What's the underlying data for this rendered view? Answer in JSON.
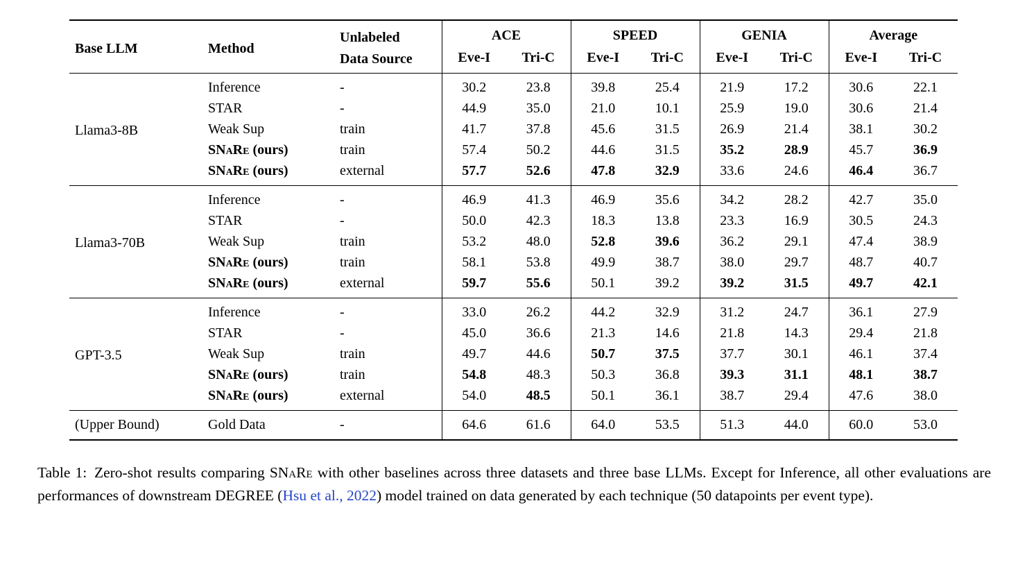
{
  "colors": {
    "text": "#000000",
    "citation_link": "#2646C8"
  },
  "table": {
    "columns": {
      "base_llm": "Base LLM",
      "method": "Method",
      "source_line1": "Unlabeled",
      "source_line2": "Data Source",
      "metric_groups": [
        {
          "label": "ACE",
          "metrics": [
            "Eve-I",
            "Tri-C"
          ]
        },
        {
          "label": "SPEED",
          "metrics": [
            "Eve-I",
            "Tri-C"
          ]
        },
        {
          "label": "GENIA",
          "metrics": [
            "Eve-I",
            "Tri-C"
          ]
        },
        {
          "label": "Average",
          "metrics": [
            "Eve-I",
            "Tri-C"
          ]
        }
      ]
    },
    "groups": [
      {
        "llm": "Llama3-8B",
        "rows": [
          {
            "method": [
              {
                "t": "Inference"
              }
            ],
            "source": "-",
            "values": [
              "30.2",
              "23.8",
              "39.8",
              "25.4",
              "21.9",
              "17.2",
              "30.6",
              "22.1"
            ],
            "bold": [
              0,
              0,
              0,
              0,
              0,
              0,
              0,
              0
            ]
          },
          {
            "method": [
              {
                "t": "STAR"
              }
            ],
            "source": "-",
            "values": [
              "44.9",
              "35.0",
              "21.0",
              "10.1",
              "25.9",
              "19.0",
              "30.6",
              "21.4"
            ],
            "bold": [
              0,
              0,
              0,
              0,
              0,
              0,
              0,
              0
            ]
          },
          {
            "method": [
              {
                "t": "Weak Sup"
              }
            ],
            "source": "train",
            "values": [
              "41.7",
              "37.8",
              "45.6",
              "31.5",
              "26.9",
              "21.4",
              "38.1",
              "30.2"
            ],
            "bold": [
              0,
              0,
              0,
              0,
              0,
              0,
              0,
              0
            ]
          },
          {
            "method": [
              {
                "t": "SNaRe",
                "sc": true,
                "b": true
              },
              {
                "t": " (ours)",
                "b": true
              }
            ],
            "source": "train",
            "values": [
              "57.4",
              "50.2",
              "44.6",
              "31.5",
              "35.2",
              "28.9",
              "45.7",
              "36.9"
            ],
            "bold": [
              0,
              0,
              0,
              0,
              1,
              1,
              0,
              1
            ]
          },
          {
            "method": [
              {
                "t": "SNaRe",
                "sc": true,
                "b": true
              },
              {
                "t": " (ours)",
                "b": true
              }
            ],
            "source": "external",
            "values": [
              "57.7",
              "52.6",
              "47.8",
              "32.9",
              "33.6",
              "24.6",
              "46.4",
              "36.7"
            ],
            "bold": [
              1,
              1,
              1,
              1,
              0,
              0,
              1,
              0
            ]
          }
        ]
      },
      {
        "llm": "Llama3-70B",
        "rows": [
          {
            "method": [
              {
                "t": "Inference"
              }
            ],
            "source": "-",
            "values": [
              "46.9",
              "41.3",
              "46.9",
              "35.6",
              "34.2",
              "28.2",
              "42.7",
              "35.0"
            ],
            "bold": [
              0,
              0,
              0,
              0,
              0,
              0,
              0,
              0
            ]
          },
          {
            "method": [
              {
                "t": "STAR"
              }
            ],
            "source": "-",
            "values": [
              "50.0",
              "42.3",
              "18.3",
              "13.8",
              "23.3",
              "16.9",
              "30.5",
              "24.3"
            ],
            "bold": [
              0,
              0,
              0,
              0,
              0,
              0,
              0,
              0
            ]
          },
          {
            "method": [
              {
                "t": "Weak Sup"
              }
            ],
            "source": "train",
            "values": [
              "53.2",
              "48.0",
              "52.8",
              "39.6",
              "36.2",
              "29.1",
              "47.4",
              "38.9"
            ],
            "bold": [
              0,
              0,
              1,
              1,
              0,
              0,
              0,
              0
            ]
          },
          {
            "method": [
              {
                "t": "SNaRe",
                "sc": true,
                "b": true
              },
              {
                "t": " (ours)",
                "b": true
              }
            ],
            "source": "train",
            "values": [
              "58.1",
              "53.8",
              "49.9",
              "38.7",
              "38.0",
              "29.7",
              "48.7",
              "40.7"
            ],
            "bold": [
              0,
              0,
              0,
              0,
              0,
              0,
              0,
              0
            ]
          },
          {
            "method": [
              {
                "t": "SNaRe",
                "sc": true,
                "b": true
              },
              {
                "t": " (ours)",
                "b": true
              }
            ],
            "source": "external",
            "values": [
              "59.7",
              "55.6",
              "50.1",
              "39.2",
              "39.2",
              "31.5",
              "49.7",
              "42.1"
            ],
            "bold": [
              1,
              1,
              0,
              0,
              1,
              1,
              1,
              1
            ]
          }
        ]
      },
      {
        "llm": "GPT-3.5",
        "rows": [
          {
            "method": [
              {
                "t": "Inference"
              }
            ],
            "source": "-",
            "values": [
              "33.0",
              "26.2",
              "44.2",
              "32.9",
              "31.2",
              "24.7",
              "36.1",
              "27.9"
            ],
            "bold": [
              0,
              0,
              0,
              0,
              0,
              0,
              0,
              0
            ]
          },
          {
            "method": [
              {
                "t": "STAR"
              }
            ],
            "source": "-",
            "values": [
              "45.0",
              "36.6",
              "21.3",
              "14.6",
              "21.8",
              "14.3",
              "29.4",
              "21.8"
            ],
            "bold": [
              0,
              0,
              0,
              0,
              0,
              0,
              0,
              0
            ]
          },
          {
            "method": [
              {
                "t": "Weak Sup"
              }
            ],
            "source": "train",
            "values": [
              "49.7",
              "44.6",
              "50.7",
              "37.5",
              "37.7",
              "30.1",
              "46.1",
              "37.4"
            ],
            "bold": [
              0,
              0,
              1,
              1,
              0,
              0,
              0,
              0
            ]
          },
          {
            "method": [
              {
                "t": "SNaRe",
                "sc": true,
                "b": true
              },
              {
                "t": " (ours)",
                "b": true
              }
            ],
            "source": "train",
            "values": [
              "54.8",
              "48.3",
              "50.3",
              "36.8",
              "39.3",
              "31.1",
              "48.1",
              "38.7"
            ],
            "bold": [
              1,
              0,
              0,
              0,
              1,
              1,
              1,
              1
            ]
          },
          {
            "method": [
              {
                "t": "SNaRe",
                "sc": true,
                "b": true
              },
              {
                "t": " (ours)",
                "b": true
              }
            ],
            "source": "external",
            "values": [
              "54.0",
              "48.5",
              "50.1",
              "36.1",
              "38.7",
              "29.4",
              "47.6",
              "38.0"
            ],
            "bold": [
              0,
              1,
              0,
              0,
              0,
              0,
              0,
              0
            ]
          }
        ]
      },
      {
        "llm": "(Upper Bound)",
        "rows": [
          {
            "method": [
              {
                "t": "Gold Data"
              }
            ],
            "source": "-",
            "values": [
              "64.6",
              "61.6",
              "64.0",
              "53.5",
              "51.3",
              "44.0",
              "60.0",
              "53.0"
            ],
            "bold": [
              0,
              0,
              0,
              0,
              0,
              0,
              0,
              0
            ]
          }
        ]
      }
    ]
  },
  "caption": {
    "parts": [
      {
        "t": "Table 1: Zero-shot results comparing "
      },
      {
        "t": "SNaRe",
        "sc": true
      },
      {
        "t": " with other baselines across three datasets and three base LLMs. Except for Inference, all other evaluations are performances of downstream DEGREE ("
      },
      {
        "t": "Hsu et al., 2022",
        "link": true
      },
      {
        "t": ") model trained on data generated by each technique (50 datapoints per event type)."
      }
    ]
  }
}
